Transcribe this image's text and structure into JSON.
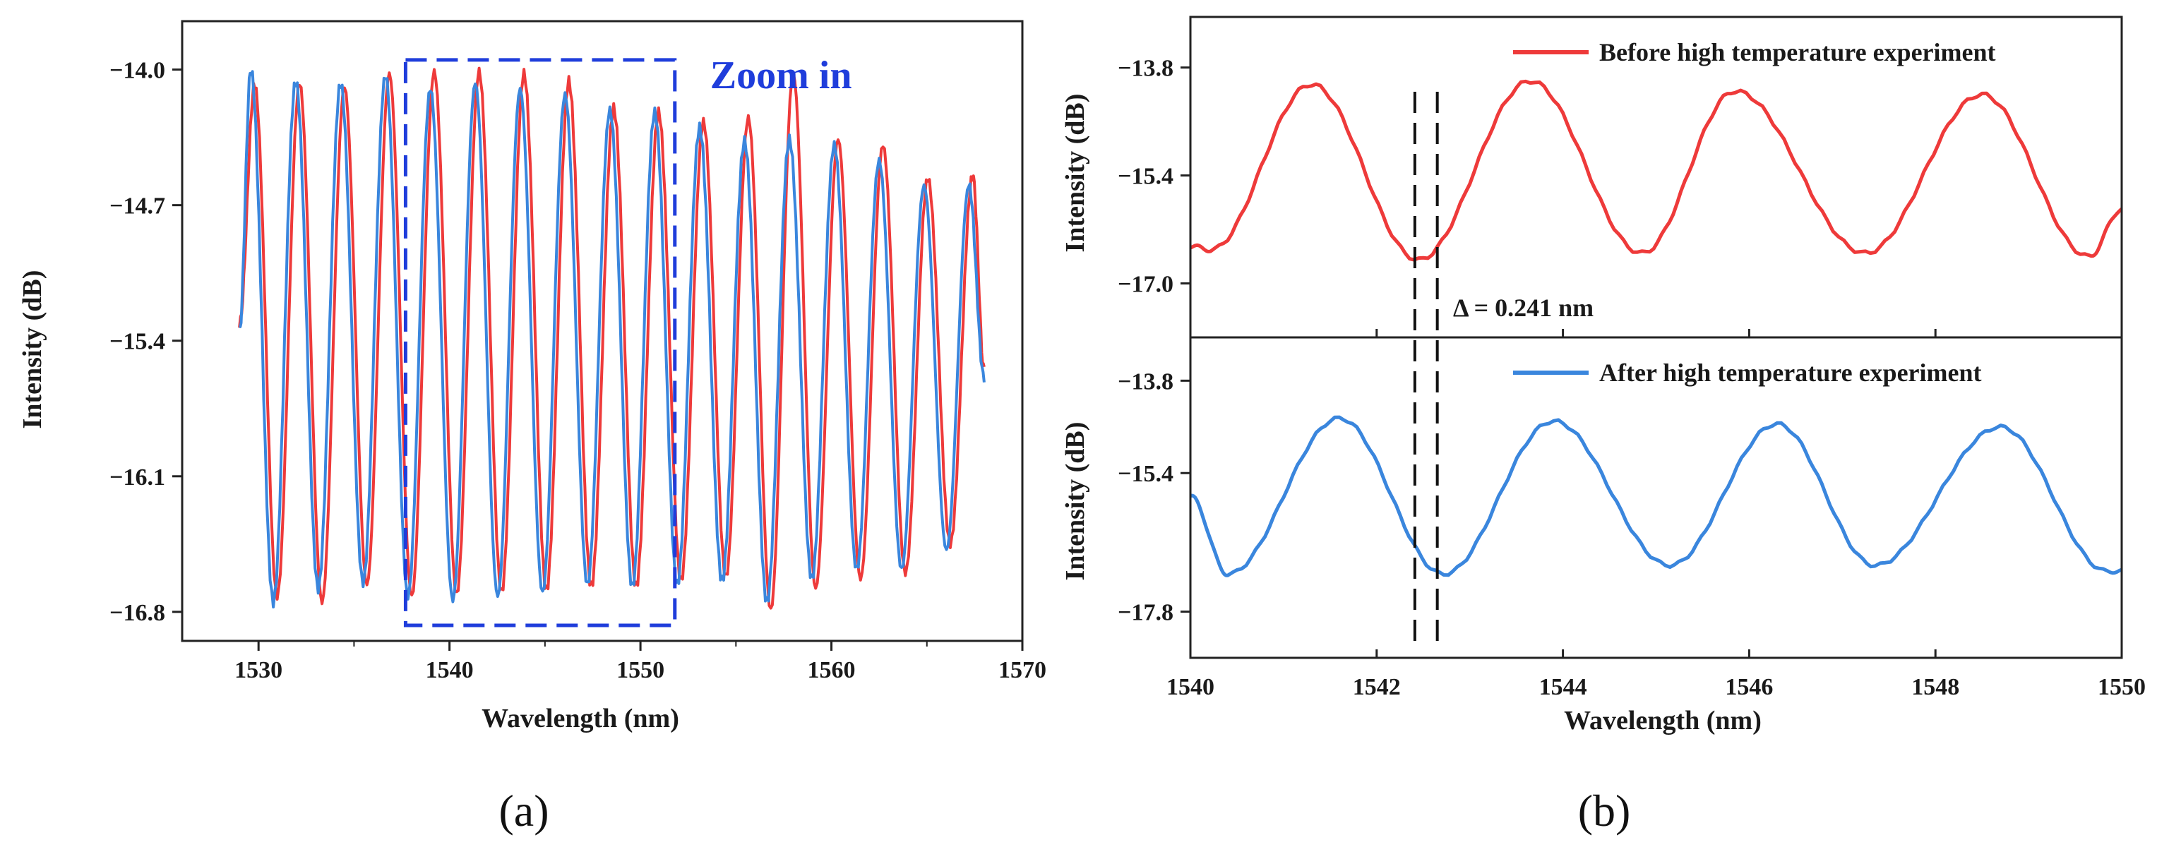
{
  "colors": {
    "before": "#ee3a3a",
    "after": "#3a86dd",
    "zoom_box": "#1f3ddb",
    "axis": "#222222"
  },
  "chart_data": [
    {
      "panel": "(a)",
      "type": "line",
      "xlabel": "Wavelength (nm)",
      "ylabel": "Intensity (dB)",
      "xlim": [
        1526,
        1570
      ],
      "ylim": [
        -16.95,
        -13.75
      ],
      "xticks": [
        1530,
        1540,
        1550,
        1560,
        1570
      ],
      "yticks": [
        -14.0,
        -14.7,
        -15.4,
        -16.1,
        -16.8
      ],
      "ytick_labels": [
        "-14.0",
        "-14.7",
        "-15.4",
        "-16.1",
        "-16.8"
      ],
      "x_range": [
        1529,
        1568
      ],
      "period_nm": 2.35,
      "series": [
        {
          "color_key": "before",
          "peaks_x": [
            1529.8,
            1532.15,
            1534.5,
            1536.85,
            1539.2,
            1541.55,
            1543.9,
            1546.25,
            1548.6,
            1550.95,
            1553.3,
            1555.65,
            1558.0,
            1560.35,
            1562.7,
            1565.05,
            1567.4
          ],
          "peaks_y": [
            -14.08,
            -14.07,
            -14.09,
            -14.02,
            -14.01,
            -14.01,
            -14.02,
            -14.06,
            -14.2,
            -14.22,
            -14.27,
            -14.25,
            -14.02,
            -14.36,
            -14.39,
            -14.56,
            -14.55
          ],
          "troughs_y": [
            -16.55,
            -16.72,
            -16.75,
            -16.66,
            -16.72,
            -16.71,
            -16.7,
            -16.69,
            -16.67,
            -16.67,
            -16.64,
            -16.62,
            -16.79,
            -16.68,
            -16.63,
            -16.6,
            -16.45
          ]
        },
        {
          "color_key": "after",
          "peaks_x": [
            1529.6,
            1531.95,
            1534.3,
            1536.65,
            1539.0,
            1541.35,
            1543.7,
            1546.05,
            1548.4,
            1550.75,
            1553.1,
            1555.45,
            1557.8,
            1560.15,
            1562.5,
            1564.85,
            1567.2
          ],
          "peaks_y": [
            -14.0,
            -14.06,
            -14.07,
            -14.03,
            -14.1,
            -14.07,
            -14.1,
            -14.13,
            -14.21,
            -14.22,
            -14.3,
            -14.37,
            -14.36,
            -14.39,
            -14.47,
            -14.6,
            -14.6
          ],
          "troughs_y": [
            -16.7,
            -16.75,
            -16.68,
            -16.65,
            -16.72,
            -16.74,
            -16.72,
            -16.7,
            -16.66,
            -16.67,
            -16.66,
            -16.64,
            -16.75,
            -16.63,
            -16.58,
            -16.58,
            -16.48
          ]
        }
      ],
      "annotation": {
        "text": "Zoom in",
        "box_x": [
          1537.7,
          1551.8
        ],
        "box_y": [
          -13.95,
          -16.87
        ]
      }
    },
    {
      "panel": "(b)",
      "type": "line",
      "xlabel": "Wavelength (nm)",
      "xlim": [
        1540,
        1550
      ],
      "xticks": [
        1540,
        1542,
        1544,
        1546,
        1548,
        1550
      ],
      "subplots": [
        {
          "ylabel": "Intensity (dB)",
          "ylim": [
            -17.8,
            -13.05
          ],
          "yticks": [
            -13.8,
            -15.4,
            -17.0
          ],
          "ytick_labels": [
            "-13.8",
            "-15.4",
            "-17.0"
          ],
          "series": {
            "name": "Before high temperature experiment",
            "color_key": "before",
            "x": [
              1540.0,
              1540.22,
              1541.3,
              1542.45,
              1543.65,
              1544.85,
              1545.85,
              1547.25,
              1548.5,
              1549.65,
              1550.0
            ],
            "y": [
              -16.45,
              -16.5,
              -14.05,
              -16.65,
              -14.0,
              -16.55,
              -14.15,
              -16.55,
              -14.2,
              -16.6,
              -15.9
            ]
          },
          "dashed_lines_x": [
            1542.41,
            1542.651
          ],
          "annotation": "Δ = 0.241 nm"
        },
        {
          "ylabel": "Intensity (dB)",
          "ylim": [
            -18.6,
            -13.05
          ],
          "yticks": [
            -13.8,
            -15.4,
            -17.8
          ],
          "ytick_labels": [
            "-13.8",
            "-15.4",
            "-17.8"
          ],
          "series": {
            "name": "After high temperature experiment",
            "color_key": "after",
            "x": [
              1540.0,
              1540.4,
              1541.6,
              1542.72,
              1543.9,
              1545.15,
              1546.3,
              1547.35,
              1548.7,
              1549.85,
              1550.0
            ],
            "y": [
              -15.8,
              -17.15,
              -14.45,
              -17.15,
              -14.5,
              -17.0,
              -14.55,
              -17.0,
              -14.6,
              -17.1,
              -17.1
            ]
          }
        }
      ]
    }
  ]
}
